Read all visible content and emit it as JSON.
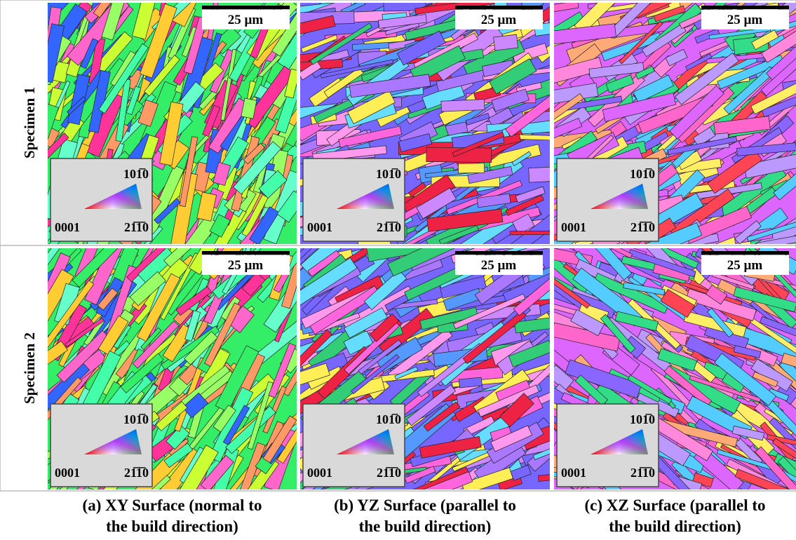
{
  "rows": [
    {
      "label": "Specimen 1"
    },
    {
      "label": "Specimen 2"
    }
  ],
  "columns": [
    {
      "caption": [
        "(a) XY Surface (normal to",
        "the build direction)"
      ]
    },
    {
      "caption": [
        "(b) YZ Surface (parallel to",
        "the build direction)"
      ]
    },
    {
      "caption": [
        "(c) XZ Surface (parallel to",
        "the build direction)"
      ]
    }
  ],
  "scale_bar": "25 µm",
  "legend": {
    "top": "101̅0",
    "left": "0001",
    "right": "21̅1̅0"
  }
}
